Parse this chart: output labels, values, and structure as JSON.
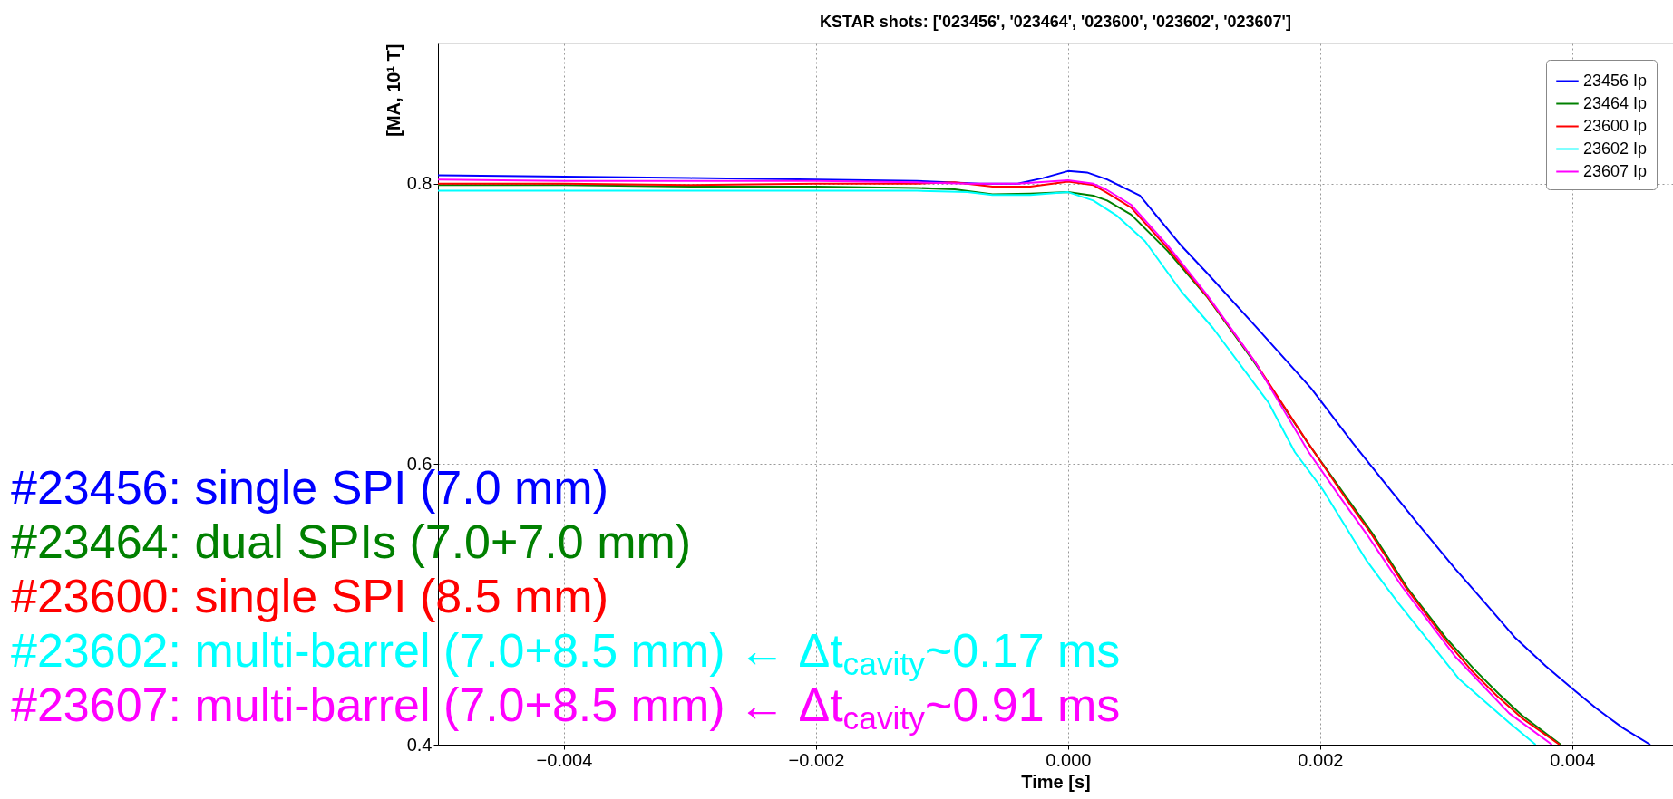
{
  "chart_data": {
    "type": "line",
    "title": "KSTAR shots: ['023456', '023464', '023600', '023602', '023607']",
    "xlabel": "Time [s]",
    "ylabel": "[MA, 10¹ T]",
    "xlim": [
      -0.005,
      0.0048
    ],
    "ylim": [
      0.4,
      0.9
    ],
    "xticks": [
      {
        "value": -0.004,
        "label": "−0.004"
      },
      {
        "value": -0.002,
        "label": "−0.002"
      },
      {
        "value": 0,
        "label": "0.000"
      },
      {
        "value": 0.002,
        "label": "0.002"
      },
      {
        "value": 0.004,
        "label": "0.004"
      }
    ],
    "yticks": [
      0.4,
      0.6,
      0.8
    ],
    "grid": true,
    "legend": "top right",
    "marker": "none",
    "line_style": "solid",
    "series": [
      {
        "name": "23456 Ip",
        "color": "#0000ff",
        "x": [
          -0.005,
          -0.004,
          -0.003,
          -0.002,
          -0.0012,
          -0.0007,
          -0.0004,
          -0.0002,
          0,
          0.00015,
          0.00031,
          0.00057,
          0.0009,
          0.0011,
          0.00149,
          0.00193,
          0.00226,
          0.00259,
          0.00279,
          0.00307,
          0.0033,
          0.00355,
          0.00379,
          0.004,
          0.00419,
          0.0044,
          0.00462
        ],
        "values": [
          0.806,
          0.805,
          0.804,
          0.803,
          0.802,
          0.8,
          0.8,
          0.804,
          0.809,
          0.808,
          0.803,
          0.7915,
          0.7556,
          0.7366,
          0.698,
          0.654,
          0.615,
          0.578,
          0.556,
          0.5256,
          0.502,
          0.476,
          0.456,
          0.44,
          0.426,
          0.412,
          0.4
        ]
      },
      {
        "name": "23464 Ip",
        "color": "#008000",
        "x": [
          -0.005,
          -0.004,
          -0.003,
          -0.002,
          -0.0012,
          -0.0009,
          -0.0006,
          -0.0003,
          0,
          0.0002,
          0.00031,
          0.0005,
          0.00079,
          0.0011,
          0.00149,
          0.00189,
          0.00222,
          0.00242,
          0.00269,
          0.003,
          0.00322,
          0.00342,
          0.0036,
          0.00391
        ],
        "values": [
          0.799,
          0.799,
          0.798,
          0.798,
          0.797,
          0.796,
          0.7925,
          0.793,
          0.794,
          0.7915,
          0.788,
          0.778,
          0.752,
          0.7196,
          0.671,
          0.6167,
          0.575,
          0.55,
          0.512,
          0.476,
          0.454,
          0.436,
          0.421,
          0.4
        ]
      },
      {
        "name": "23600 Ip",
        "color": "#ff0000",
        "x": [
          -0.005,
          -0.004,
          -0.003,
          -0.002,
          -0.0012,
          -0.0009,
          -0.0006,
          -0.0003,
          0,
          0.0002,
          0.0003,
          0.0005,
          0.00079,
          0.0011,
          0.00149,
          0.00189,
          0.0022,
          0.0024,
          0.00268,
          0.003,
          0.0032,
          0.0034,
          0.0036,
          0.0039
        ],
        "values": [
          0.8,
          0.8,
          0.799,
          0.8,
          0.8,
          0.801,
          0.798,
          0.798,
          0.8015,
          0.799,
          0.794,
          0.783,
          0.754,
          0.72,
          0.672,
          0.617,
          0.576,
          0.551,
          0.512,
          0.474,
          0.453,
          0.435,
          0.419,
          0.4
        ]
      },
      {
        "name": "23602 Ip",
        "color": "#00ffff",
        "x": [
          -0.005,
          -0.004,
          -0.003,
          -0.002,
          -0.0012,
          -0.0008,
          -0.0006,
          -0.0003,
          0,
          0.0002,
          0.00039,
          0.00061,
          0.0009,
          0.00115,
          0.00159,
          0.0018,
          0.00202,
          0.00237,
          0.00262,
          0.0031,
          0.0035,
          0.00371
        ],
        "values": [
          0.795,
          0.795,
          0.795,
          0.795,
          0.795,
          0.794,
          0.792,
          0.792,
          0.794,
          0.788,
          0.777,
          0.759,
          0.723,
          0.697,
          0.644,
          0.6085,
          0.582,
          0.531,
          0.501,
          0.447,
          0.4157,
          0.4
        ]
      },
      {
        "name": "23607 Ip",
        "color": "#ff00ff",
        "x": [
          -0.005,
          -0.004,
          -0.003,
          -0.002,
          -0.0012,
          -0.0008,
          -0.0004,
          0,
          0.0002,
          0.0003,
          0.0005,
          0.00079,
          0.0011,
          0.00149,
          0.00191,
          0.00217,
          0.00237,
          0.00264,
          0.00307,
          0.0035,
          0.00384
        ],
        "values": [
          0.803,
          0.802,
          0.802,
          0.802,
          0.801,
          0.8,
          0.8,
          0.8025,
          0.8,
          0.796,
          0.785,
          0.756,
          0.721,
          0.672,
          0.6085,
          0.575,
          0.55,
          0.514,
          0.463,
          0.4224,
          0.4
        ]
      }
    ],
    "annotations": [
      "#23456: single SPI (7.0 mm)",
      "#23464: dual SPIs (7.0+7.0 mm)",
      "#23600: single SPI (8.5 mm)",
      "#23602: multi-barrel (7.0+8.5 mm) ← Δt$_{cavity}$~0.17 ms",
      "#23607: multi-barrel (7.0+8.5 mm) ← Δt$_{cavity}$~0.91 ms"
    ]
  }
}
